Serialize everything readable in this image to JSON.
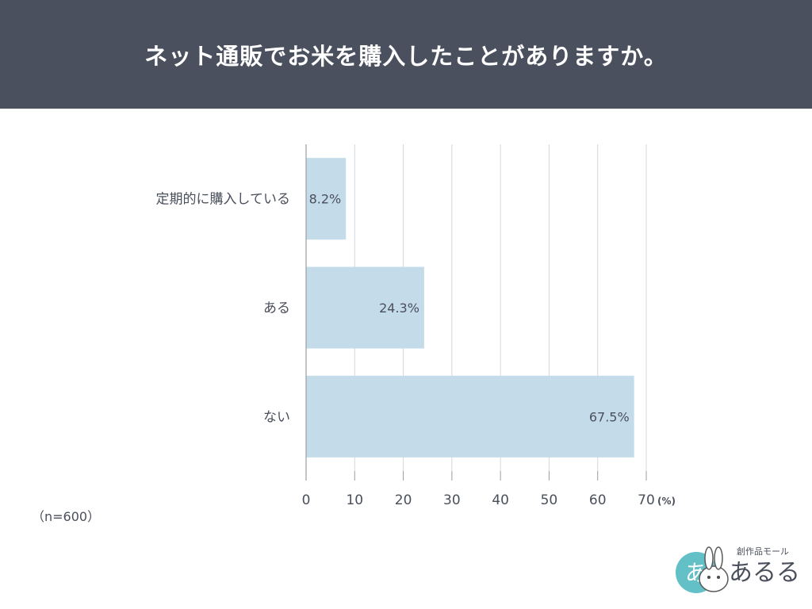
{
  "header": {
    "title": "ネット通販でお米を購入したことがありますか。"
  },
  "sample_size": "（n=600）",
  "logo": {
    "tagline": "創作品モール",
    "name": "あるる"
  },
  "colors": {
    "header_bg": "#4b505e",
    "bar": "#c4dcea",
    "grid": "#d4d7dc",
    "axis": "#9a9ea6",
    "text": "#4a4f5c"
  },
  "chart_data": {
    "type": "bar",
    "orientation": "horizontal",
    "categories": [
      "定期的に購入している",
      "ある",
      "ない"
    ],
    "values": [
      8.2,
      24.3,
      67.5
    ],
    "value_labels": [
      "8.2%",
      "24.3%",
      "67.5%"
    ],
    "xlim": [
      0,
      70
    ],
    "xticks": [
      0,
      10,
      20,
      30,
      40,
      50,
      60,
      70
    ],
    "xunit": "(%)",
    "grid": true
  }
}
